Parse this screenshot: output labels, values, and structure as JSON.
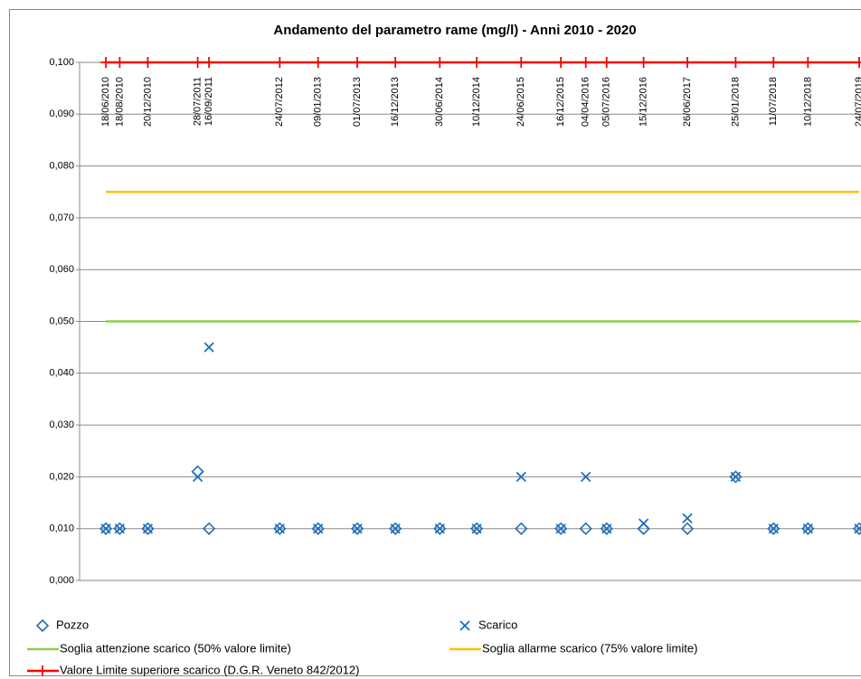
{
  "chart_data": {
    "type": "line",
    "title": "Andamento del parametro rame (mg/l) - Anni 2010 - 2020",
    "x": [
      "18/06/2010",
      "18/08/2010",
      "20/12/2010",
      "28/07/2011",
      "16/09/2011",
      "24/07/2012",
      "09/01/2013",
      "01/07/2013",
      "16/12/2013",
      "30/06/2014",
      "10/12/2014",
      "24/06/2015",
      "16/12/2015",
      "04/04/2016",
      "05/07/2016",
      "15/12/2016",
      "26/06/2017",
      "25/01/2018",
      "11/07/2018",
      "10/12/2018",
      "24/07/2019"
    ],
    "xlim": [
      "22/02/2010",
      "01/08/2019"
    ],
    "ylim": [
      0,
      0.1
    ],
    "yticks": [
      {
        "value": 0,
        "label": "0,000"
      },
      {
        "value": 0.01,
        "label": "0,010"
      },
      {
        "value": 0.02,
        "label": "0,020"
      },
      {
        "value": 0.03,
        "label": "0,030"
      },
      {
        "value": 0.04,
        "label": "0,040"
      },
      {
        "value": 0.05,
        "label": "0,050"
      },
      {
        "value": 0.06,
        "label": "0,060"
      },
      {
        "value": 0.07,
        "label": "0,070"
      },
      {
        "value": 0.08,
        "label": "0,080"
      },
      {
        "value": 0.09,
        "label": "0,090"
      },
      {
        "value": 0.1,
        "label": "0,100"
      }
    ],
    "grid": true,
    "legend": "bottom",
    "series": [
      {
        "name": "Pozzo",
        "color": "#1f6fba",
        "marker": "diamond",
        "line": false,
        "values": [
          0.01,
          0.01,
          0.01,
          0.021,
          0.01,
          0.01,
          0.01,
          0.01,
          0.01,
          0.01,
          0.01,
          0.01,
          0.01,
          0.01,
          0.01,
          0.01,
          0.01,
          0.02,
          0.01,
          0.01,
          0.01
        ]
      },
      {
        "name": "Scarico",
        "color": "#1f6fba",
        "marker": "x",
        "line": false,
        "values": [
          0.01,
          0.01,
          0.01,
          0.02,
          0.045,
          0.01,
          0.01,
          0.01,
          0.01,
          0.01,
          0.01,
          0.02,
          0.01,
          0.02,
          0.01,
          0.011,
          0.012,
          0.02,
          0.01,
          0.01,
          0.01
        ]
      },
      {
        "name": "Soglia attenzione scarico (50% valore limite)",
        "color": "#8ccf4a",
        "marker": "none",
        "line": true,
        "values": [
          0.05,
          0.05,
          0.05,
          0.05,
          0.05,
          0.05,
          0.05,
          0.05,
          0.05,
          0.05,
          0.05,
          0.05,
          0.05,
          0.05,
          0.05,
          0.05,
          0.05,
          0.05,
          0.05,
          0.05,
          0.05
        ]
      },
      {
        "name": "Soglia allarme scarico (75% valore limite)",
        "color": "#ffc000",
        "marker": "none",
        "line": true,
        "values": [
          0.075,
          0.075,
          0.075,
          0.075,
          0.075,
          0.075,
          0.075,
          0.075,
          0.075,
          0.075,
          0.075,
          0.075,
          0.075,
          0.075,
          0.075,
          0.075,
          0.075,
          0.075,
          0.075,
          0.075,
          0.075
        ]
      },
      {
        "name": "Valore Limite superiore scarico (D.G.R. Veneto 842/2012)",
        "color": "#ff0000",
        "marker": "plus",
        "line": true,
        "values": [
          0.1,
          0.1,
          0.1,
          0.1,
          0.1,
          0.1,
          0.1,
          0.1,
          0.1,
          0.1,
          0.1,
          0.1,
          0.1,
          0.1,
          0.1,
          0.1,
          0.1,
          0.1,
          0.1,
          0.1,
          0.1
        ]
      }
    ]
  }
}
